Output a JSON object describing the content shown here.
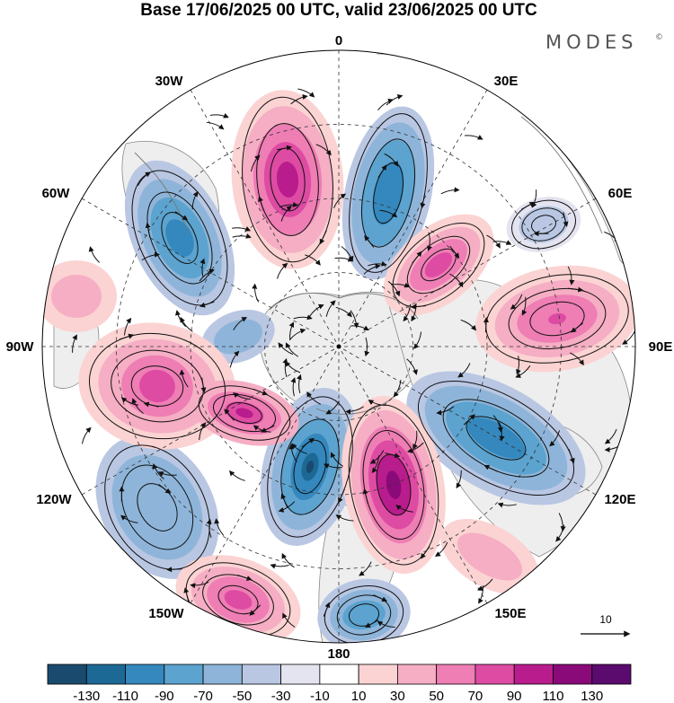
{
  "title": "Base 17/06/2025 00 UTC, valid 23/06/2025 00 UTC",
  "brand": {
    "name": "MODES",
    "mark": "©"
  },
  "longitude_labels": [
    "0",
    "30E",
    "60E",
    "90E",
    "120E",
    "150E",
    "180",
    "150W",
    "120W",
    "90W",
    "60W",
    "30W"
  ],
  "vector_reference": {
    "label": "10"
  },
  "colorbar": {
    "ticks": [
      "-130",
      "-110",
      "-90",
      "-70",
      "-50",
      "-30",
      "-10",
      "10",
      "30",
      "50",
      "70",
      "90",
      "110",
      "130"
    ],
    "colors": [
      "#1a4a6e",
      "#1d6996",
      "#3488be",
      "#5ca3cf",
      "#8eb5d9",
      "#b9c7e3",
      "#e4e4f0",
      "#ffffff",
      "#fbd3d3",
      "#f5aec4",
      "#ee7eb4",
      "#de4ba3",
      "#b91c8c",
      "#8a0a7a",
      "#5b0a6e"
    ]
  },
  "colors": {
    "land": "#eeeeee",
    "coast": "#777777",
    "grid": "#333333",
    "streamline": "#111111"
  }
}
